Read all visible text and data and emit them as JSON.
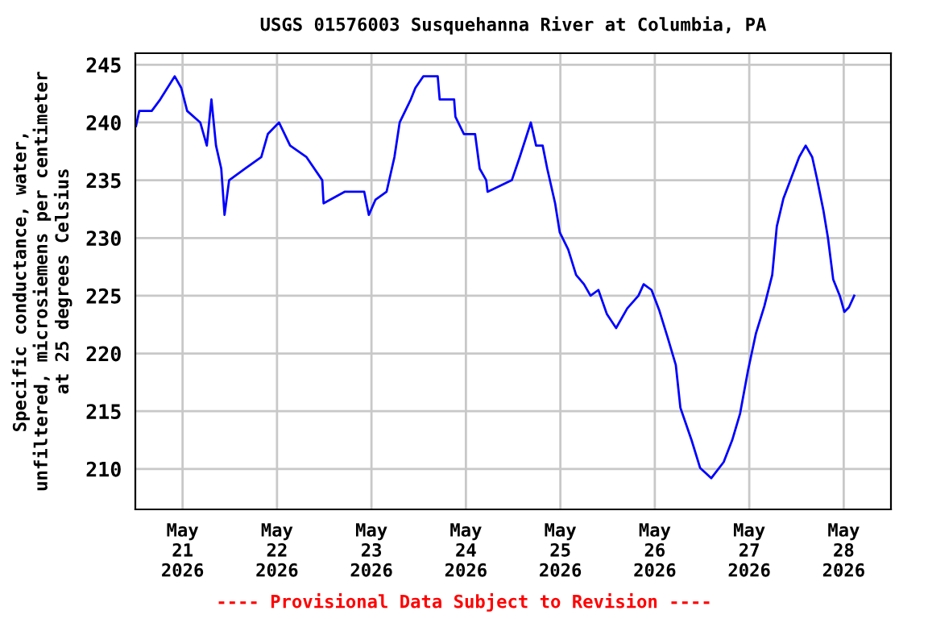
{
  "chart_data": {
    "type": "line",
    "title": "USGS 01576003 Susquehanna River at Columbia, PA",
    "ylabel": "Specific conductance, water,\nunfiltered, microsiemens per centimeter\nat 25 degrees Celsius",
    "annotations": [
      "---- Provisional Data Subject to Revision ----"
    ],
    "series": [
      {
        "color": "#0000ff",
        "x": [
          "2026-05-20T12:10",
          "2026-05-20T13:00",
          "2026-05-20T16:10",
          "2026-05-20T18:20",
          "2026-05-20T22:00",
          "2026-05-20T23:40",
          "2026-05-21T01:10",
          "2026-05-21T04:30",
          "2026-05-21T06:10",
          "2026-05-21T07:20",
          "2026-05-21T08:30",
          "2026-05-21T09:50",
          "2026-05-21T10:40",
          "2026-05-21T11:50",
          "2026-05-21T15:50",
          "2026-05-21T20:00",
          "2026-05-21T21:40",
          "2026-05-22T00:30",
          "2026-05-22T03:20",
          "2026-05-22T07:30",
          "2026-05-22T11:30",
          "2026-05-22T11:50",
          "2026-05-22T17:10",
          "2026-05-22T22:10",
          "2026-05-22T23:20",
          "2026-05-23T01:00",
          "2026-05-23T03:50",
          "2026-05-23T05:50",
          "2026-05-23T07:10",
          "2026-05-23T10:00",
          "2026-05-23T11:10",
          "2026-05-23T13:10",
          "2026-05-23T16:50",
          "2026-05-23T17:20",
          "2026-05-23T21:00",
          "2026-05-23T21:20",
          "2026-05-23T23:30",
          "2026-05-24T02:20",
          "2026-05-24T03:30",
          "2026-05-24T05:10",
          "2026-05-24T05:30",
          "2026-05-24T11:40",
          "2026-05-24T13:40",
          "2026-05-24T16:30",
          "2026-05-24T17:50",
          "2026-05-24T19:30",
          "2026-05-24T20:40",
          "2026-05-24T22:40",
          "2026-05-24T23:50",
          "2026-05-25T02:00",
          "2026-05-25T04:00",
          "2026-05-25T06:00",
          "2026-05-25T07:40",
          "2026-05-25T09:40",
          "2026-05-25T11:50",
          "2026-05-25T14:10",
          "2026-05-25T17:00",
          "2026-05-25T19:50",
          "2026-05-25T21:10",
          "2026-05-25T23:10",
          "2026-05-26T01:10",
          "2026-05-26T03:20",
          "2026-05-26T05:20",
          "2026-05-26T06:30",
          "2026-05-26T09:20",
          "2026-05-26T11:30",
          "2026-05-26T14:20",
          "2026-05-26T17:30",
          "2026-05-26T19:40",
          "2026-05-26T21:40",
          "2026-05-26T23:40",
          "2026-05-27T01:40",
          "2026-05-27T03:50",
          "2026-05-27T05:50",
          "2026-05-27T07:00",
          "2026-05-27T08:40",
          "2026-05-27T10:40",
          "2026-05-27T12:40",
          "2026-05-27T14:20",
          "2026-05-27T16:00",
          "2026-05-27T17:10",
          "2026-05-27T18:50",
          "2026-05-27T20:00",
          "2026-05-27T21:20",
          "2026-05-27T23:00",
          "2026-05-28T00:10",
          "2026-05-28T01:20",
          "2026-05-28T02:40"
        ],
        "values": [
          239.7,
          241,
          241,
          242,
          244,
          243,
          241,
          240,
          238,
          242,
          238,
          236,
          232,
          235,
          236,
          237,
          239,
          240,
          238,
          237,
          235,
          233,
          234,
          234,
          232,
          233.3,
          234,
          237,
          240,
          242,
          243,
          244,
          244,
          242,
          242,
          240.5,
          239,
          239,
          236,
          235,
          234,
          235,
          237,
          240,
          238,
          238,
          236,
          233,
          230.5,
          229,
          226.8,
          226,
          225,
          225.5,
          223.4,
          222.2,
          223.9,
          225,
          226,
          225.5,
          223.7,
          221.3,
          219,
          215.3,
          212.5,
          210.1,
          209.2,
          210.6,
          212.5,
          214.8,
          218.5,
          221.7,
          224.1,
          226.8,
          231,
          233.4,
          235.2,
          237,
          238,
          237,
          235.2,
          232.4,
          230,
          226.4,
          225,
          223.6,
          224,
          225
        ]
      }
    ],
    "xlim": [
      "2026-05-20T12:00",
      "2026-05-28T12:00"
    ],
    "xticks": [
      {
        "value": "2026-05-21",
        "label": "May\n21\n2026"
      },
      {
        "value": "2026-05-22",
        "label": "May\n22\n2026"
      },
      {
        "value": "2026-05-23",
        "label": "May\n23\n2026"
      },
      {
        "value": "2026-05-24",
        "label": "May\n24\n2026"
      },
      {
        "value": "2026-05-25",
        "label": "May\n25\n2026"
      },
      {
        "value": "2026-05-26",
        "label": "May\n26\n2026"
      },
      {
        "value": "2026-05-27",
        "label": "May\n27\n2026"
      },
      {
        "value": "2026-05-28",
        "label": "May\n28\n2026"
      }
    ],
    "ylim": [
      206.5,
      246
    ],
    "yticks": [
      210,
      215,
      220,
      225,
      230,
      235,
      240,
      245
    ],
    "grid": true,
    "line_style": "solid",
    "marker": "none"
  }
}
